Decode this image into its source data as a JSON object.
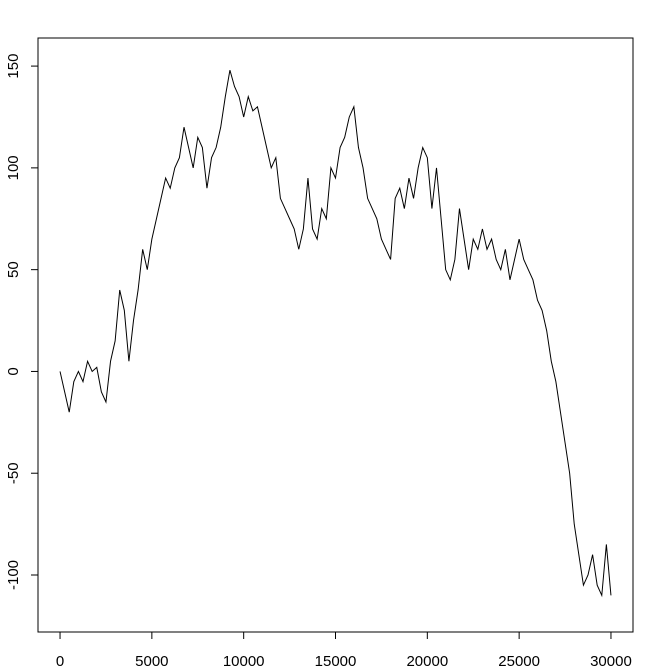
{
  "chart_data": {
    "type": "line",
    "color": "#000000",
    "x": [
      0,
      250,
      500,
      750,
      1000,
      1250,
      1500,
      1750,
      2000,
      2250,
      2500,
      2750,
      3000,
      3250,
      3500,
      3750,
      4000,
      4250,
      4500,
      4750,
      5000,
      5250,
      5500,
      5750,
      6000,
      6250,
      6500,
      6750,
      7000,
      7250,
      7500,
      7750,
      8000,
      8250,
      8500,
      8750,
      9000,
      9250,
      9500,
      9750,
      10000,
      10250,
      10500,
      10750,
      11000,
      11250,
      11500,
      11750,
      12000,
      12250,
      12500,
      12750,
      13000,
      13250,
      13500,
      13750,
      14000,
      14250,
      14500,
      14750,
      15000,
      15250,
      15500,
      15750,
      16000,
      16250,
      16500,
      16750,
      17000,
      17250,
      17500,
      17750,
      18000,
      18250,
      18500,
      18750,
      19000,
      19250,
      19500,
      19750,
      20000,
      20250,
      20500,
      20750,
      21000,
      21250,
      21500,
      21750,
      22000,
      22250,
      22500,
      22750,
      23000,
      23250,
      23500,
      23750,
      24000,
      24250,
      24500,
      24750,
      25000,
      25250,
      25500,
      25750,
      26000,
      26250,
      26500,
      26750,
      27000,
      27250,
      27500,
      27750,
      28000,
      28250,
      28500,
      28750,
      29000,
      29250,
      29500,
      29750,
      30000
    ],
    "values": [
      0,
      -10,
      -20,
      -5,
      0,
      -5,
      5,
      0,
      2,
      -10,
      -15,
      5,
      15,
      40,
      30,
      5,
      25,
      40,
      60,
      50,
      65,
      75,
      85,
      95,
      90,
      100,
      105,
      120,
      110,
      100,
      115,
      110,
      90,
      105,
      110,
      120,
      135,
      148,
      140,
      135,
      125,
      135,
      128,
      130,
      120,
      110,
      100,
      105,
      85,
      80,
      75,
      70,
      60,
      70,
      95,
      70,
      65,
      80,
      75,
      100,
      95,
      110,
      115,
      125,
      130,
      110,
      100,
      85,
      80,
      75,
      65,
      60,
      55,
      85,
      90,
      80,
      95,
      85,
      100,
      110,
      105,
      80,
      100,
      75,
      50,
      45,
      55,
      80,
      65,
      50,
      65,
      60,
      70,
      60,
      65,
      55,
      50,
      60,
      45,
      55,
      65,
      55,
      50,
      45,
      35,
      30,
      20,
      5,
      -5,
      -20,
      -35,
      -50,
      -75,
      -90,
      -105,
      -100,
      -90,
      -105,
      -110,
      -85,
      -110
    ],
    "xlim": [
      -1200,
      31200
    ],
    "ylim": [
      -128,
      163.8
    ],
    "xticks": [
      0,
      5000,
      10000,
      15000,
      20000,
      25000,
      30000
    ],
    "yticks": [
      -100,
      -50,
      0,
      50,
      100,
      150
    ]
  }
}
